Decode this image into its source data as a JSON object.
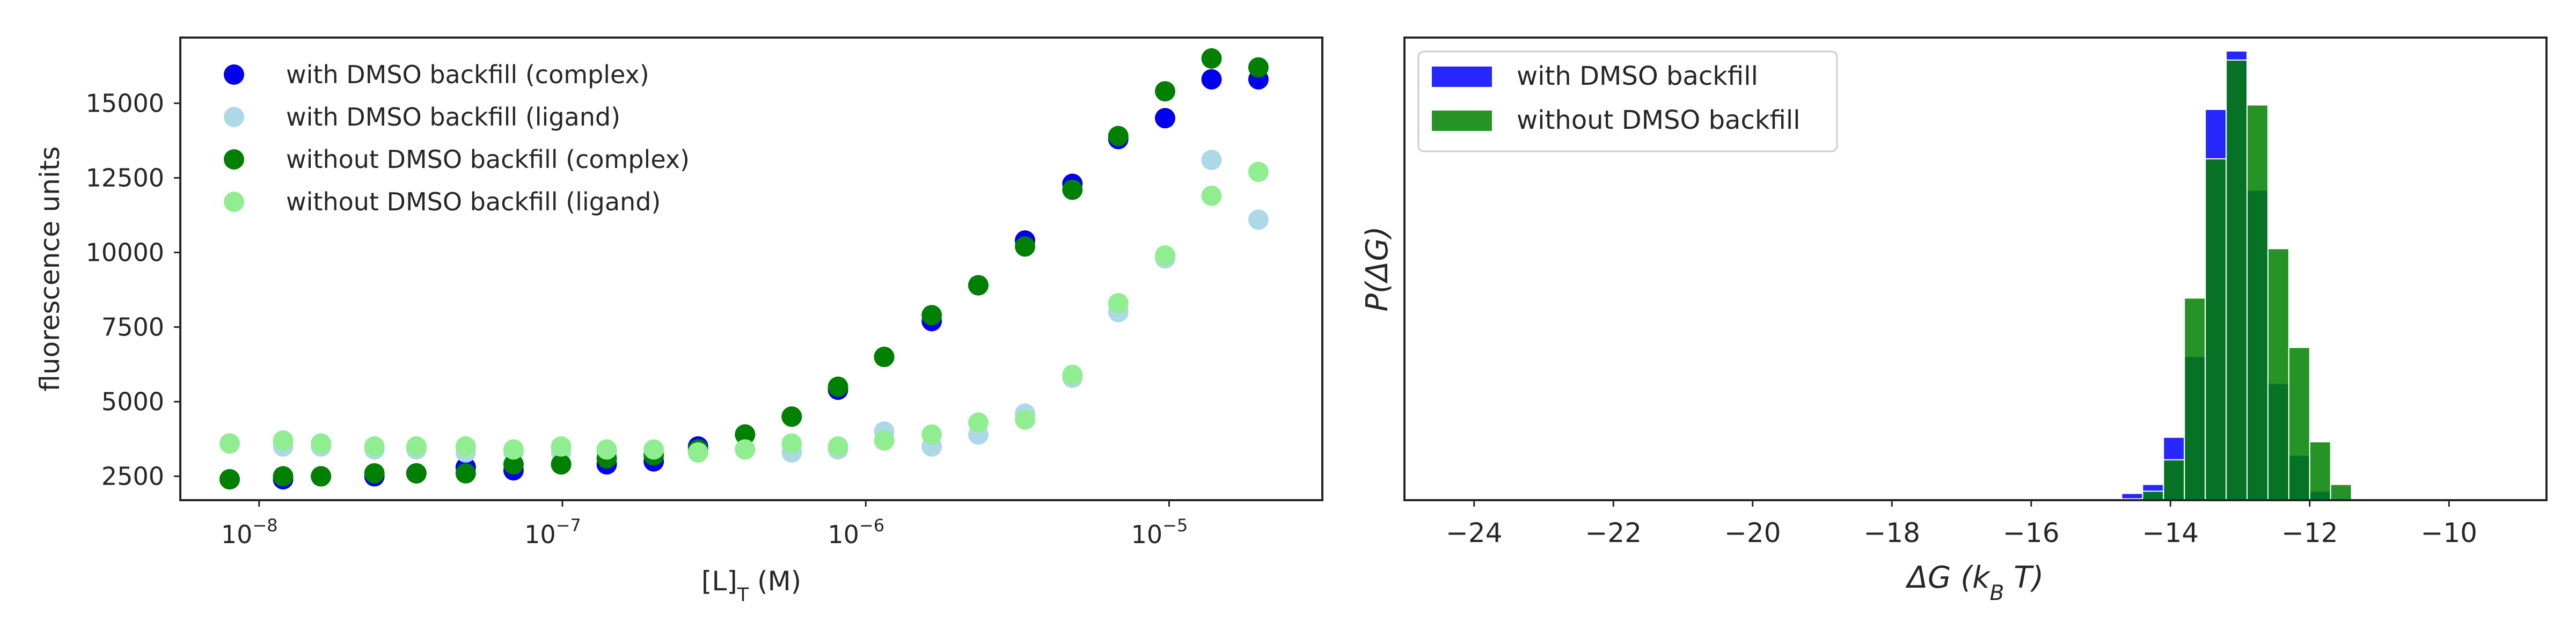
{
  "chart_data": [
    {
      "type": "scatter",
      "xscale": "log",
      "xlim": [
        5.5e-09,
        3.2e-05
      ],
      "ylim": [
        1700,
        17200
      ],
      "xlabel": "[L]_T (M)",
      "ylabel": "fluorescence units",
      "xticks": [
        {
          "value": 1e-08,
          "base": "10",
          "exp": "−8"
        },
        {
          "value": 1e-07,
          "base": "10",
          "exp": "−7"
        },
        {
          "value": 1e-06,
          "base": "10",
          "exp": "−6"
        },
        {
          "value": 1e-05,
          "base": "10",
          "exp": "−5"
        }
      ],
      "yticks": [
        {
          "value": 2500,
          "label": "2500"
        },
        {
          "value": 5000,
          "label": "5000"
        },
        {
          "value": 7500,
          "label": "7500"
        },
        {
          "value": 10000,
          "label": "10000"
        },
        {
          "value": 12500,
          "label": "12500"
        },
        {
          "value": 15000,
          "label": "15000"
        }
      ],
      "grid": false,
      "legend_position": "top-left",
      "x": [
        8e-09,
        1.2e-08,
        1.6e-08,
        2.4e-08,
        3.3e-08,
        4.8e-08,
        6.9e-08,
        9.9e-08,
        1.4e-07,
        2e-07,
        2.8e-07,
        4e-07,
        5.7e-07,
        8.1e-07,
        1.15e-06,
        1.65e-06,
        2.35e-06,
        3.35e-06,
        4.8e-06,
        6.8e-06,
        9.7e-06,
        1.38e-05,
        1.97e-05
      ],
      "series": [
        {
          "name": "with DMSO backfill (complex)",
          "color": "#0000ee",
          "values": [
            2400,
            2400,
            2500,
            2500,
            2600,
            2800,
            2700,
            2900,
            2900,
            3000,
            3500,
            3900,
            4500,
            5400,
            6500,
            7700,
            8900,
            10400,
            12300,
            13800,
            14500,
            15800,
            15800
          ]
        },
        {
          "name": "with DMSO backfill (ligand)",
          "color": "#add8e6",
          "values": [
            3600,
            3500,
            3500,
            3400,
            3400,
            3300,
            3300,
            3300,
            3300,
            3300,
            3300,
            3400,
            3300,
            3400,
            4000,
            3500,
            3900,
            4600,
            5800,
            8000,
            9800,
            13100,
            11100
          ]
        },
        {
          "name": "without DMSO backfill (complex)",
          "color": "#008000",
          "values": [
            2400,
            2500,
            2500,
            2600,
            2600,
            2600,
            2900,
            2900,
            3100,
            3200,
            3400,
            3900,
            4500,
            5500,
            6500,
            7900,
            8900,
            10200,
            12100,
            13900,
            15400,
            16500,
            16200
          ]
        },
        {
          "name": "without DMSO backfill (ligand)",
          "color": "#90ee90",
          "values": [
            3600,
            3700,
            3600,
            3500,
            3500,
            3500,
            3400,
            3500,
            3400,
            3400,
            3300,
            3400,
            3600,
            3500,
            3700,
            3900,
            4300,
            4400,
            5900,
            8300,
            9900,
            11900,
            12700
          ]
        }
      ]
    },
    {
      "type": "bar",
      "subtype": "histogram",
      "xlim": [
        -25,
        -8.6
      ],
      "xlabel": "ΔG (k_B T)",
      "ylabel": "P(ΔG)",
      "yticks": [],
      "xticks": [
        {
          "value": -24,
          "label": "−24"
        },
        {
          "value": -22,
          "label": "−22"
        },
        {
          "value": -20,
          "label": "−20"
        },
        {
          "value": -18,
          "label": "−18"
        },
        {
          "value": -16,
          "label": "−16"
        },
        {
          "value": -14,
          "label": "−14"
        },
        {
          "value": -12,
          "label": "−12"
        },
        {
          "value": -10,
          "label": "−10"
        }
      ],
      "bin_width": 0.3,
      "grid": false,
      "legend_position": "top-left",
      "series": [
        {
          "name": "with DMSO backfill",
          "color": "#0000ff",
          "alpha": 0.85,
          "bins": [
            [
              -15.0,
              0.003
            ],
            [
              -14.7,
              0.015
            ],
            [
              -14.4,
              0.035
            ],
            [
              -14.1,
              0.14
            ],
            [
              -13.8,
              0.32
            ],
            [
              -13.5,
              0.87
            ],
            [
              -13.2,
              1.0
            ],
            [
              -12.9,
              0.69
            ],
            [
              -12.6,
              0.26
            ],
            [
              -12.3,
              0.1
            ],
            [
              -12.0,
              0.02
            ]
          ]
        },
        {
          "name": "without DMSO backfill",
          "color": "#008000",
          "alpha": 0.85,
          "bins": [
            [
              -14.7,
              0.003
            ],
            [
              -14.4,
              0.02
            ],
            [
              -14.1,
              0.09
            ],
            [
              -13.8,
              0.45
            ],
            [
              -13.5,
              0.76
            ],
            [
              -13.2,
              0.98
            ],
            [
              -12.9,
              0.88
            ],
            [
              -12.6,
              0.56
            ],
            [
              -12.3,
              0.34
            ],
            [
              -12.0,
              0.13
            ],
            [
              -11.7,
              0.035
            ]
          ]
        }
      ]
    }
  ]
}
